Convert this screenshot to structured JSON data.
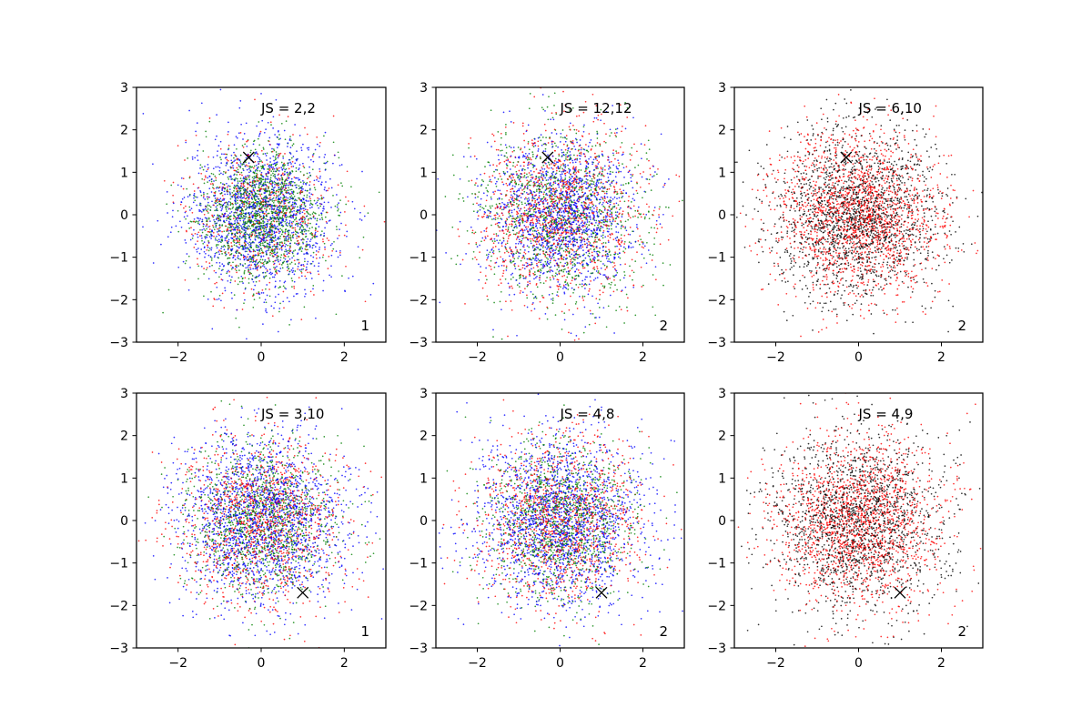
{
  "chart_data": [
    {
      "type": "scatter",
      "annotation": "JS = 2,2",
      "corner_label": "1",
      "xlim": [
        -3,
        3
      ],
      "ylim": [
        -3,
        3
      ],
      "xticks": [
        -2,
        0,
        2
      ],
      "yticks": [
        -3,
        -2,
        -1,
        0,
        1,
        2,
        3
      ],
      "grid": false,
      "marker": {
        "x": -0.3,
        "y": 1.35
      },
      "series": [
        {
          "color": "#0000ff",
          "values_description_count": 1500,
          "center": [
            0,
            0
          ],
          "spread": 0.9
        },
        {
          "color": "#008000",
          "values_description_count": 1500,
          "center": [
            0,
            0
          ],
          "spread": 0.75
        },
        {
          "color": "#ff0000",
          "values_description_count": 600,
          "center": [
            0,
            0
          ],
          "spread": 0.9
        }
      ]
    },
    {
      "type": "scatter",
      "annotation": "JS = 12,12",
      "corner_label": "2",
      "xlim": [
        -3,
        3
      ],
      "ylim": [
        -3,
        3
      ],
      "xticks": [
        -2,
        0,
        2
      ],
      "yticks": [
        -3,
        -2,
        -1,
        0,
        1,
        2,
        3
      ],
      "grid": false,
      "marker": {
        "x": -0.3,
        "y": 1.35
      },
      "series": [
        {
          "color": "#0000ff",
          "values_description_count": 1500,
          "center": [
            0,
            0
          ],
          "spread": 0.9
        },
        {
          "color": "#008000",
          "values_description_count": 1200,
          "center": [
            0,
            0
          ],
          "spread": 1.0
        },
        {
          "color": "#ff0000",
          "values_description_count": 1200,
          "center": [
            0,
            0
          ],
          "spread": 1.0
        }
      ]
    },
    {
      "type": "scatter",
      "annotation": "JS = 6,10",
      "corner_label": "2",
      "xlim": [
        -3,
        3
      ],
      "ylim": [
        -3,
        3
      ],
      "xticks": [
        -2,
        0,
        2
      ],
      "yticks": [
        -3,
        -2,
        -1,
        0,
        1,
        2,
        3
      ],
      "grid": false,
      "marker": {
        "x": -0.3,
        "y": 1.35
      },
      "series": [
        {
          "color": "#ff0000",
          "values_description_count": 1800,
          "center": [
            0,
            0
          ],
          "spread": 1.0
        },
        {
          "color": "#000000",
          "values_description_count": 1800,
          "center": [
            0,
            0
          ],
          "spread": 1.0
        }
      ]
    },
    {
      "type": "scatter",
      "annotation": "JS = 3,10",
      "corner_label": "1",
      "xlim": [
        -3,
        3
      ],
      "ylim": [
        -3,
        3
      ],
      "xticks": [
        -2,
        0,
        2
      ],
      "yticks": [
        -3,
        -2,
        -1,
        0,
        1,
        2,
        3
      ],
      "grid": false,
      "marker": {
        "x": 1.0,
        "y": -1.7
      },
      "series": [
        {
          "color": "#0000ff",
          "values_description_count": 1800,
          "center": [
            0,
            0
          ],
          "spread": 1.0
        },
        {
          "color": "#008000",
          "values_description_count": 1200,
          "center": [
            0,
            0
          ],
          "spread": 0.9
        },
        {
          "color": "#ff0000",
          "values_description_count": 1200,
          "center": [
            0,
            0
          ],
          "spread": 1.0
        }
      ]
    },
    {
      "type": "scatter",
      "annotation": "JS = 4,8",
      "corner_label": "2",
      "xlim": [
        -3,
        3
      ],
      "ylim": [
        -3,
        3
      ],
      "xticks": [
        -2,
        0,
        2
      ],
      "yticks": [
        -3,
        -2,
        -1,
        0,
        1,
        2,
        3
      ],
      "grid": false,
      "marker": {
        "x": 1.0,
        "y": -1.7
      },
      "series": [
        {
          "color": "#0000ff",
          "values_description_count": 1800,
          "center": [
            0,
            0
          ],
          "spread": 1.0
        },
        {
          "color": "#008000",
          "values_description_count": 1200,
          "center": [
            0,
            0
          ],
          "spread": 0.9
        },
        {
          "color": "#ff0000",
          "values_description_count": 1200,
          "center": [
            0,
            0
          ],
          "spread": 1.0
        }
      ]
    },
    {
      "type": "scatter",
      "annotation": "JS = 4,9",
      "corner_label": "2",
      "xlim": [
        -3,
        3
      ],
      "ylim": [
        -3,
        3
      ],
      "xticks": [
        -2,
        0,
        2
      ],
      "yticks": [
        -3,
        -2,
        -1,
        0,
        1,
        2,
        3
      ],
      "grid": false,
      "marker": {
        "x": 1.0,
        "y": -1.7
      },
      "series": [
        {
          "color": "#ff0000",
          "values_description_count": 1700,
          "center": [
            0,
            0
          ],
          "spread": 1.0
        },
        {
          "color": "#000000",
          "values_description_count": 1700,
          "center": [
            0,
            0
          ],
          "spread": 1.05
        }
      ]
    }
  ]
}
